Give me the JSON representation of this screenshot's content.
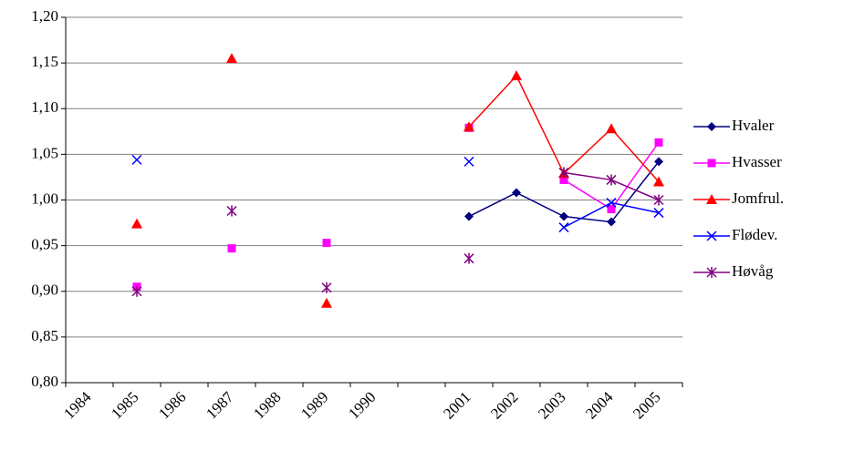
{
  "chart_data": {
    "type": "line",
    "categories": [
      "1984",
      "1985",
      "1986",
      "1987",
      "1988",
      "1989",
      "1990",
      null,
      "2001",
      "2002",
      "2003",
      "2004",
      "2005"
    ],
    "series": [
      {
        "name": "Hvaler",
        "color": "#000080",
        "marker": "diamond",
        "values": [
          null,
          null,
          null,
          null,
          null,
          null,
          null,
          null,
          0.982,
          1.008,
          0.982,
          0.976,
          1.042
        ]
      },
      {
        "name": "Hvasser",
        "color": "#ff00ff",
        "marker": "square",
        "values": [
          null,
          0.905,
          null,
          0.947,
          null,
          0.953,
          null,
          null,
          1.079,
          null,
          1.022,
          0.99,
          1.063
        ]
      },
      {
        "name": "Jomfrul.",
        "color": "#ff0000",
        "marker": "triangle",
        "values": [
          null,
          0.974,
          null,
          1.155,
          null,
          0.887,
          null,
          null,
          1.08,
          1.136,
          1.029,
          1.078,
          1.02
        ]
      },
      {
        "name": "Flødev.",
        "color": "#0000ff",
        "marker": "x",
        "values": [
          null,
          1.044,
          null,
          null,
          null,
          null,
          null,
          null,
          1.042,
          null,
          0.97,
          0.997,
          0.986
        ]
      },
      {
        "name": "Høvåg",
        "color": "#800080",
        "marker": "star",
        "values": [
          null,
          0.9,
          null,
          0.988,
          null,
          0.904,
          null,
          null,
          0.936,
          null,
          1.03,
          1.022,
          1.0
        ]
      }
    ],
    "ylim": [
      0.8,
      1.2
    ],
    "yticks": [
      {
        "value": 0.8,
        "label": "0,80"
      },
      {
        "value": 0.85,
        "label": "0,85"
      },
      {
        "value": 0.9,
        "label": "0,90"
      },
      {
        "value": 0.95,
        "label": "0,95"
      },
      {
        "value": 1.0,
        "label": "1,00"
      },
      {
        "value": 1.05,
        "label": "1,05"
      },
      {
        "value": 1.1,
        "label": "1,10"
      },
      {
        "value": 1.15,
        "label": "1,15"
      },
      {
        "value": 1.2,
        "label": "1,20"
      }
    ],
    "grid": true,
    "legend": "right"
  }
}
